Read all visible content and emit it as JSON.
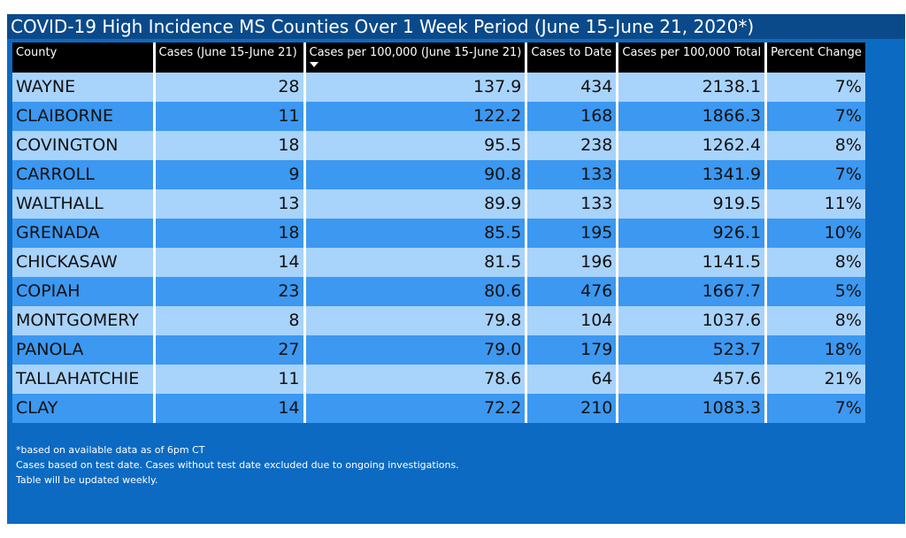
{
  "title": "COVID-19 High Incidence MS Counties Over 1 Week Period (June 15-June 21, 2020*)",
  "table": {
    "columns": [
      "County",
      "Cases (June 15-June 21)",
      "Cases per 100,000 (June 15-June 21)",
      "Cases to Date",
      "Cases per 100,000 Total",
      "Percent Change"
    ],
    "sorted_column": "Cases per 100,000 (June 15-June 21)",
    "sort_direction": "descending",
    "rows": [
      [
        "WAYNE",
        "28",
        "137.9",
        "434",
        "2138.1",
        "7%"
      ],
      [
        "CLAIBORNE",
        "11",
        "122.2",
        "168",
        "1866.3",
        "7%"
      ],
      [
        "COVINGTON",
        "18",
        "95.5",
        "238",
        "1262.4",
        "8%"
      ],
      [
        "CARROLL",
        "9",
        "90.8",
        "133",
        "1341.9",
        "7%"
      ],
      [
        "WALTHALL",
        "13",
        "89.9",
        "133",
        "919.5",
        "11%"
      ],
      [
        "GRENADA",
        "18",
        "85.5",
        "195",
        "926.1",
        "10%"
      ],
      [
        "CHICKASAW",
        "14",
        "81.5",
        "196",
        "1141.5",
        "8%"
      ],
      [
        "COPIAH",
        "23",
        "80.6",
        "476",
        "1667.7",
        "5%"
      ],
      [
        "MONTGOMERY",
        "8",
        "79.8",
        "104",
        "1037.6",
        "8%"
      ],
      [
        "PANOLA",
        "27",
        "79.0",
        "179",
        "523.7",
        "18%"
      ],
      [
        "TALLAHATCHIE",
        "11",
        "78.6",
        "64",
        "457.6",
        "21%"
      ],
      [
        "CLAY",
        "14",
        "72.2",
        "210",
        "1083.3",
        "7%"
      ]
    ]
  },
  "footnotes": [
    "*based on available data as of 6pm CT",
    "Cases based on test date. Cases without test date excluded due to ongoing investigations.",
    "Table will be updated weekly."
  ],
  "colors": {
    "panel_background": "#0c6ac2",
    "title_bar": "#0b4a8a",
    "header_background": "#000000",
    "row_light": "#a8d3fb",
    "row_dark": "#3c98f0"
  }
}
